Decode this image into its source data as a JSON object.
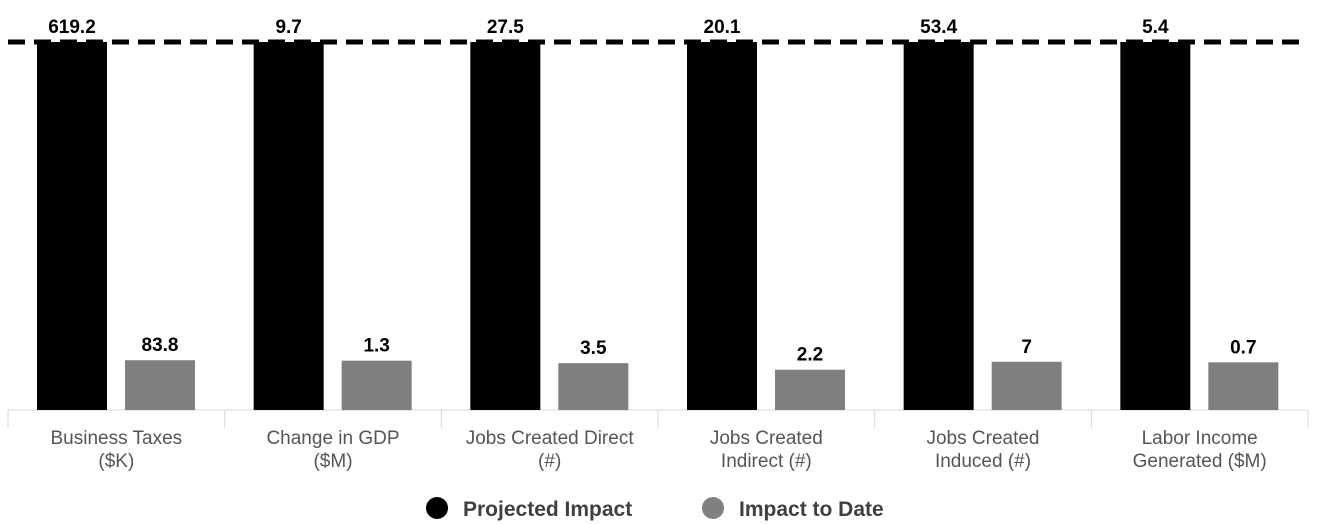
{
  "chart_data": {
    "type": "bar",
    "categories": [
      [
        "Business Taxes",
        "($K)"
      ],
      [
        "Change in GDP",
        "($M)"
      ],
      [
        "Jobs Created Direct",
        "(#)"
      ],
      [
        "Jobs Created",
        "Indirect (#)"
      ],
      [
        "Jobs Created",
        "Induced (#)"
      ],
      [
        "Labor Income",
        "Generated ($M)"
      ]
    ],
    "series": [
      {
        "name": "Projected Impact",
        "color": "#000000",
        "labels": [
          "619.2",
          "9.7",
          "27.5",
          "20.1",
          "53.4",
          "5.4"
        ],
        "relative_height": [
          1,
          1,
          1,
          1,
          1,
          1
        ]
      },
      {
        "name": "Impact to Date",
        "color": "#7f7f7f",
        "labels": [
          "83.8",
          "1.3",
          "3.5",
          "2.2",
          "7",
          "0.7"
        ],
        "relative_height": [
          0.1353,
          0.134,
          0.1273,
          0.1095,
          0.1311,
          0.1296
        ]
      }
    ],
    "target_line": {
      "style": "dashed",
      "color": "#000000"
    },
    "legend_position": "bottom-center",
    "grid": false
  }
}
